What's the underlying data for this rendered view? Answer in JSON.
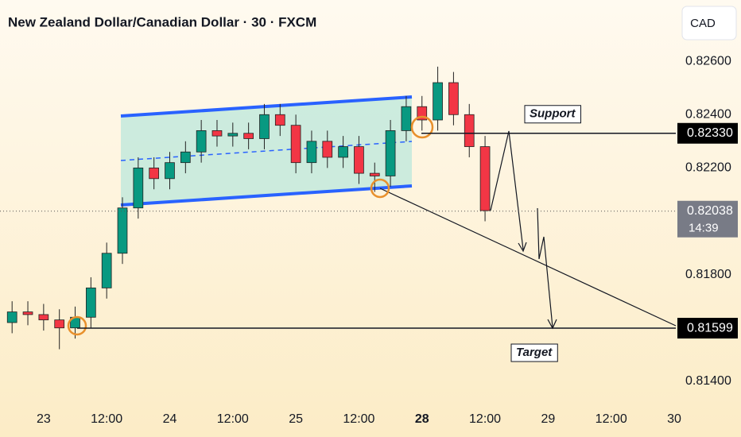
{
  "chart_data": {
    "type": "candlestick",
    "title": "New Zealand Dollar/Canadian Dollar · 30 · FXCM",
    "currency": "CAD",
    "x": [
      -6,
      -3,
      0,
      3,
      6,
      9,
      12,
      15,
      18,
      21,
      24,
      27,
      30,
      33,
      36,
      39,
      42,
      45,
      48,
      51,
      54,
      57,
      60,
      63,
      66,
      69,
      72,
      75,
      78,
      81,
      84
    ],
    "open": [
      0.8162,
      0.8166,
      0.8165,
      0.8163,
      0.816,
      0.8164,
      0.8175,
      0.8188,
      0.8205,
      0.822,
      0.8216,
      0.8222,
      0.8226,
      0.8234,
      0.8232,
      0.8233,
      0.8231,
      0.824,
      0.8236,
      0.8222,
      0.823,
      0.8224,
      0.8228,
      0.8218,
      0.8217,
      0.8234,
      0.8243,
      0.8238,
      0.8252,
      0.824,
      0.8228
    ],
    "high": [
      0.817,
      0.817,
      0.8169,
      0.8167,
      0.8168,
      0.8179,
      0.8192,
      0.8209,
      0.8224,
      0.8224,
      0.8226,
      0.823,
      0.8238,
      0.8238,
      0.8237,
      0.8237,
      0.8244,
      0.8244,
      0.824,
      0.8234,
      0.8234,
      0.8232,
      0.8232,
      0.8222,
      0.8238,
      0.8247,
      0.8247,
      0.8258,
      0.8256,
      0.8244,
      0.8232
    ],
    "low": [
      0.8158,
      0.8161,
      0.8159,
      0.8152,
      0.8156,
      0.816,
      0.8171,
      0.8184,
      0.8201,
      0.8212,
      0.8212,
      0.8218,
      0.8222,
      0.8228,
      0.8228,
      0.8227,
      0.8227,
      0.8232,
      0.8218,
      0.8218,
      0.822,
      0.822,
      0.8214,
      0.8211,
      0.8213,
      0.823,
      0.8234,
      0.8234,
      0.8236,
      0.8224,
      0.82
    ],
    "close": [
      0.8166,
      0.8165,
      0.8163,
      0.816,
      0.8164,
      0.8175,
      0.8188,
      0.8205,
      0.822,
      0.8216,
      0.8222,
      0.8226,
      0.8234,
      0.8232,
      0.8233,
      0.8231,
      0.824,
      0.8236,
      0.8222,
      0.823,
      0.8224,
      0.8228,
      0.8218,
      0.8217,
      0.8234,
      0.8243,
      0.8238,
      0.8252,
      0.824,
      0.8228,
      0.8204
    ],
    "up_color": "#089981",
    "down_color": "#f23645",
    "xlim": [
      -8.3,
      120.3
    ],
    "xticks": [
      {
        "value": 0,
        "label": "23"
      },
      {
        "value": 12,
        "label": "12:00"
      },
      {
        "value": 24,
        "label": "24"
      },
      {
        "value": 36,
        "label": "12:00"
      },
      {
        "value": 48,
        "label": "25"
      },
      {
        "value": 60,
        "label": "12:00"
      },
      {
        "value": 72,
        "label": "28"
      },
      {
        "value": 84,
        "label": "12:00"
      },
      {
        "value": 96,
        "label": "29"
      },
      {
        "value": 108,
        "label": "12:00"
      },
      {
        "value": 120,
        "label": "30"
      }
    ],
    "ylim": [
      0.8131,
      0.8283
    ],
    "yticks": [
      {
        "value": 0.814,
        "label": "0.81400"
      },
      {
        "value": 0.816,
        "label": "0.81600"
      },
      {
        "value": 0.818,
        "label": "0.81800"
      },
      {
        "value": 0.82,
        "label": "0.82000"
      },
      {
        "value": 0.822,
        "label": "0.82200"
      },
      {
        "value": 0.824,
        "label": "0.82400"
      },
      {
        "value": 0.826,
        "label": "0.82600"
      }
    ],
    "levels": [
      {
        "name": "Support",
        "value": 0.8233,
        "value_label": "0.82330"
      },
      {
        "name": "Target",
        "value": 0.81599
      }
    ],
    "current_price": 0.82038,
    "countdown": "14:39"
  }
}
